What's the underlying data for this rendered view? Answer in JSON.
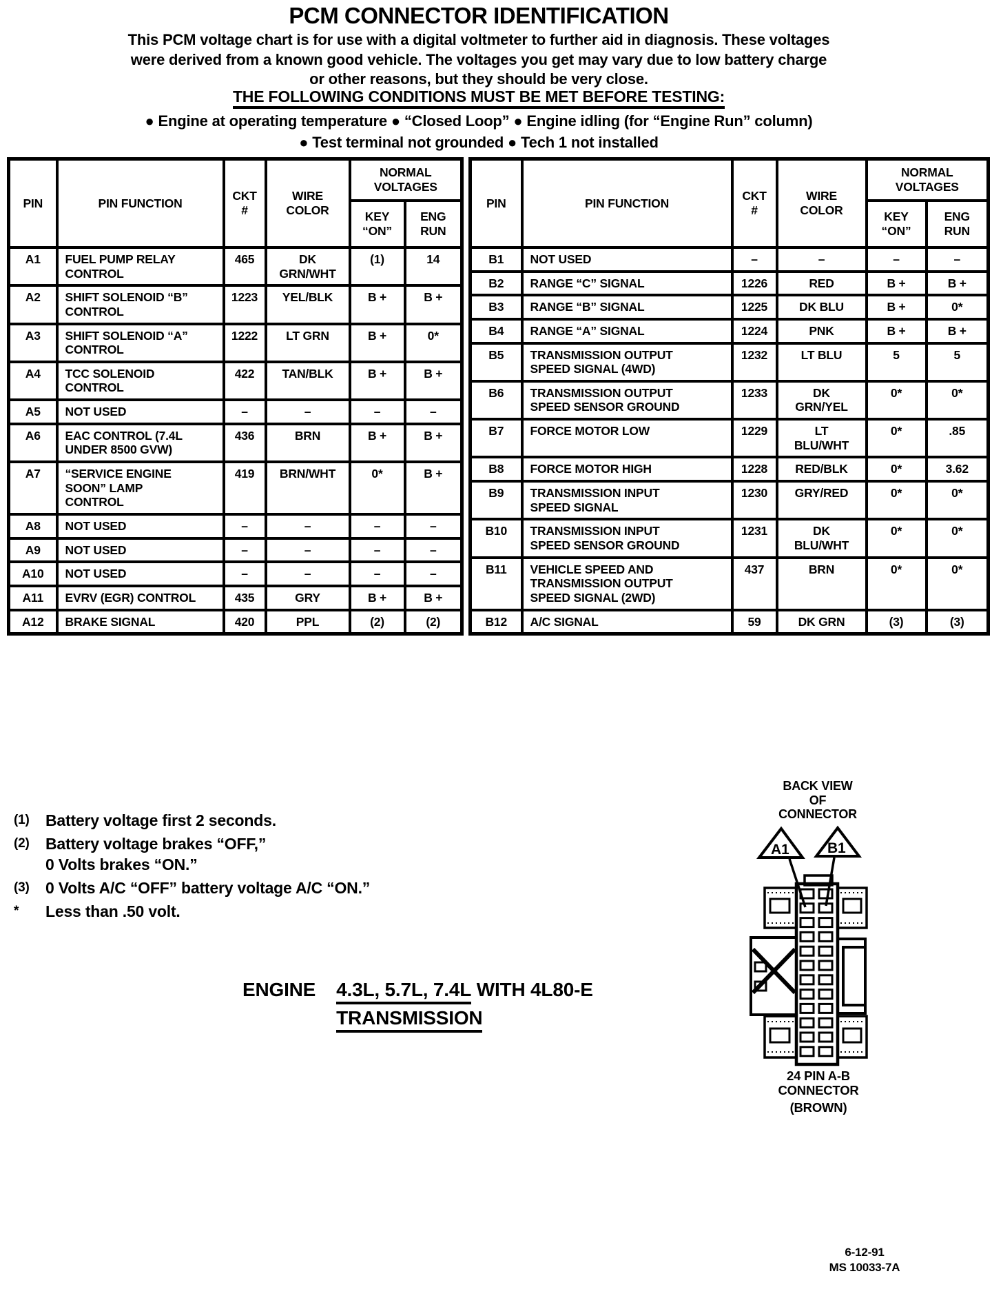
{
  "header": {
    "title": "PCM CONNECTOR IDENTIFICATION",
    "intro": "This PCM voltage chart is for use with a digital voltmeter to further aid in diagnosis.  These voltages\nwere derived from a known good vehicle.  The voltages you get may vary due to low battery charge\nor other reasons, but they should be very close.",
    "conditions_heading": "THE FOLLOWING CONDITIONS MUST BE MET BEFORE TESTING:",
    "conditions": "●  Engine at operating temperature  ●  “Closed Loop”  ●  Engine idling (for “Engine Run” column)\n●  Test terminal not grounded  ●  Tech 1 not installed"
  },
  "table_headers": {
    "pin": "PIN",
    "function": "PIN FUNCTION",
    "ckt": "CKT\n#",
    "wire": "WIRE\nCOLOR",
    "normal_voltages": "NORMAL\nVOLTAGES",
    "key_on": "KEY\n“ON”",
    "eng_run": "ENG\nRUN"
  },
  "connector_a": {
    "rows": [
      {
        "pin": "A1",
        "function": "FUEL PUMP RELAY\nCONTROL",
        "ckt": "465",
        "wire": "DK\nGRN/WHT",
        "key_on": "(1)",
        "eng_run": "14"
      },
      {
        "pin": "A2",
        "function": "SHIFT SOLENOID “B”\nCONTROL",
        "ckt": "1223",
        "wire": "YEL/BLK",
        "key_on": "B +",
        "eng_run": "B +"
      },
      {
        "pin": "A3",
        "function": "SHIFT SOLENOID “A”\nCONTROL",
        "ckt": "1222",
        "wire": "LT GRN",
        "key_on": "B +",
        "eng_run": "0*"
      },
      {
        "pin": "A4",
        "function": "TCC SOLENOID\nCONTROL",
        "ckt": "422",
        "wire": "TAN/BLK",
        "key_on": "B +",
        "eng_run": "B +"
      },
      {
        "pin": "A5",
        "function": "NOT USED",
        "ckt": "–",
        "wire": "–",
        "key_on": "–",
        "eng_run": "–"
      },
      {
        "pin": "A6",
        "function": "EAC CONTROL  (7.4L\nUNDER 8500 GVW)",
        "ckt": "436",
        "wire": "BRN",
        "key_on": "B +",
        "eng_run": "B +"
      },
      {
        "pin": "A7",
        "function": "“SERVICE ENGINE\nSOON” LAMP\nCONTROL",
        "ckt": "419",
        "wire": "BRN/WHT",
        "key_on": "0*",
        "eng_run": "B +"
      },
      {
        "pin": "A8",
        "function": "NOT USED",
        "ckt": "–",
        "wire": "–",
        "key_on": "–",
        "eng_run": "–"
      },
      {
        "pin": "A9",
        "function": "NOT USED",
        "ckt": "–",
        "wire": "–",
        "key_on": "–",
        "eng_run": "–"
      },
      {
        "pin": "A10",
        "function": "NOT USED",
        "ckt": "–",
        "wire": "–",
        "key_on": "–",
        "eng_run": "–"
      },
      {
        "pin": "A11",
        "function": "EVRV (EGR) CONTROL",
        "ckt": "435",
        "wire": "GRY",
        "key_on": "B +",
        "eng_run": "B +"
      },
      {
        "pin": "A12",
        "function": "BRAKE SIGNAL",
        "ckt": "420",
        "wire": "PPL",
        "key_on": "(2)",
        "eng_run": "(2)"
      }
    ]
  },
  "connector_b": {
    "rows": [
      {
        "pin": "B1",
        "function": "NOT USED",
        "ckt": "–",
        "wire": "–",
        "key_on": "–",
        "eng_run": "–"
      },
      {
        "pin": "B2",
        "function": "RANGE “C” SIGNAL",
        "ckt": "1226",
        "wire": "RED",
        "key_on": "B +",
        "eng_run": "B +"
      },
      {
        "pin": "B3",
        "function": "RANGE “B” SIGNAL",
        "ckt": "1225",
        "wire": "DK BLU",
        "key_on": "B +",
        "eng_run": "0*"
      },
      {
        "pin": "B4",
        "function": "RANGE “A” SIGNAL",
        "ckt": "1224",
        "wire": "PNK",
        "key_on": "B +",
        "eng_run": "B +"
      },
      {
        "pin": "B5",
        "function": "TRANSMISSION OUTPUT\nSPEED SIGNAL (4WD)",
        "ckt": "1232",
        "wire": "LT BLU",
        "key_on": "5",
        "eng_run": "5"
      },
      {
        "pin": "B6",
        "function": "TRANSMISSION OUTPUT\nSPEED SENSOR GROUND",
        "ckt": "1233",
        "wire": "DK\nGRN/YEL",
        "key_on": "0*",
        "eng_run": "0*"
      },
      {
        "pin": "B7",
        "function": "FORCE MOTOR LOW",
        "ckt": "1229",
        "wire": "LT\nBLU/WHT",
        "key_on": "0*",
        "eng_run": ".85"
      },
      {
        "pin": "B8",
        "function": "FORCE MOTOR HIGH",
        "ckt": "1228",
        "wire": "RED/BLK",
        "key_on": "0*",
        "eng_run": "3.62"
      },
      {
        "pin": "B9",
        "function": "TRANSMISSION INPUT\nSPEED SIGNAL",
        "ckt": "1230",
        "wire": "GRY/RED",
        "key_on": "0*",
        "eng_run": "0*"
      },
      {
        "pin": "B10",
        "function": "TRANSMISSION INPUT\nSPEED SENSOR GROUND",
        "ckt": "1231",
        "wire": "DK\nBLU/WHT",
        "key_on": "0*",
        "eng_run": "0*"
      },
      {
        "pin": "B11",
        "function": "VEHICLE SPEED AND\nTRANSMISSION OUTPUT\nSPEED SIGNAL (2WD)",
        "ckt": "437",
        "wire": "BRN",
        "key_on": "0*",
        "eng_run": "0*"
      },
      {
        "pin": "B12",
        "function": "A/C SIGNAL",
        "ckt": "59",
        "wire": "DK GRN",
        "key_on": "(3)",
        "eng_run": "(3)"
      }
    ]
  },
  "footnotes": [
    {
      "marker": "(1)",
      "text": "Battery voltage first 2 seconds."
    },
    {
      "marker": "(2)",
      "text": "Battery voltage brakes “OFF,”\n0 Volts brakes “ON.”"
    },
    {
      "marker": "(3)",
      "text": "0 Volts A/C “OFF” battery voltage A/C “ON.”"
    },
    {
      "marker": "*",
      "text": "Less than .50 volt."
    }
  ],
  "engine_label": {
    "prefix": "ENGINE",
    "underlined": "4.3L, 5.7L, 7.4L",
    "suffix": "WITH 4L80-E",
    "line2": "TRANSMISSION"
  },
  "diagram": {
    "back_view": "BACK VIEW\nOF\nCONNECTOR",
    "pin_a1": "A1",
    "pin_b1": "B1",
    "caption": "24 PIN  A-B\nCONNECTOR",
    "brown": "(BROWN)"
  },
  "footer": {
    "date": "6-12-91",
    "doc_number": "MS 10033-7A"
  }
}
